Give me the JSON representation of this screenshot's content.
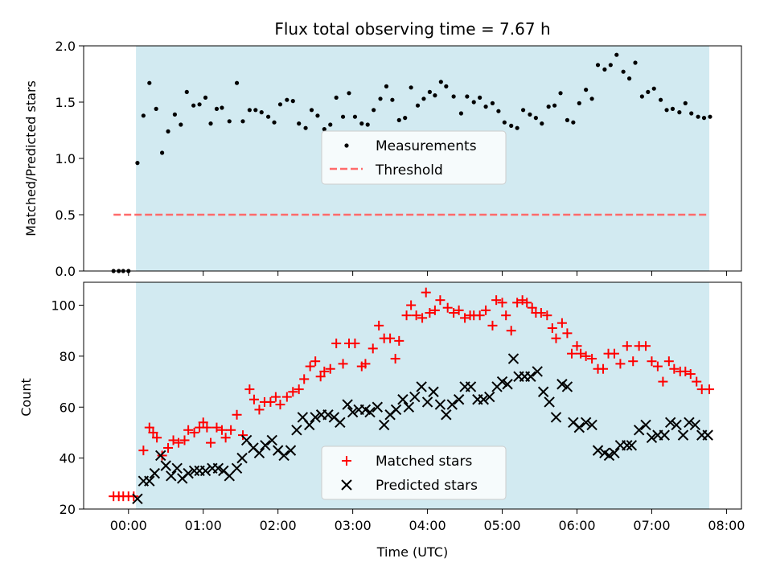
{
  "chart_data": [
    {
      "type": "scatter",
      "title": "Flux total observing time = 7.67 h",
      "xlabel": "",
      "ylabel": "Matched/Predicted stars",
      "xlim": [
        -0.6,
        8.2
      ],
      "ylim": [
        0.0,
        2.0
      ],
      "yticks": [
        0.0,
        0.5,
        1.0,
        1.5,
        2.0
      ],
      "ytick_labels": [
        "0.0",
        "0.5",
        "1.0",
        "1.5",
        "2.0"
      ],
      "shaded_range": [
        0.1,
        7.77
      ],
      "shaded_color": "#add8e6",
      "legend": {
        "placement": "center",
        "entries": [
          "Measurements",
          "Threshold"
        ]
      },
      "series": [
        {
          "name": "Measurements",
          "kind": "scatter",
          "color": "#000000",
          "x": [
            -0.2,
            -0.13,
            -0.07,
            0.0,
            0.12,
            0.2,
            0.28,
            0.37,
            0.45,
            0.53,
            0.62,
            0.7,
            0.78,
            0.87,
            0.95,
            1.03,
            1.1,
            1.18,
            1.25,
            1.35,
            1.45,
            1.53,
            1.62,
            1.7,
            1.78,
            1.87,
            1.95,
            2.03,
            2.12,
            2.2,
            2.28,
            2.37,
            2.45,
            2.53,
            2.62,
            2.7,
            2.78,
            2.87,
            2.95,
            3.03,
            3.12,
            3.2,
            3.28,
            3.37,
            3.45,
            3.53,
            3.62,
            3.7,
            3.78,
            3.87,
            3.95,
            4.03,
            4.1,
            4.18,
            4.25,
            4.35,
            4.45,
            4.53,
            4.62,
            4.7,
            4.78,
            4.87,
            4.95,
            5.03,
            5.12,
            5.2,
            5.28,
            5.37,
            5.45,
            5.53,
            5.62,
            5.7,
            5.78,
            5.87,
            5.95,
            6.03,
            6.12,
            6.2,
            6.28,
            6.37,
            6.45,
            6.53,
            6.62,
            6.7,
            6.78,
            6.87,
            6.95,
            7.03,
            7.12,
            7.2,
            7.28,
            7.37,
            7.45,
            7.53,
            7.62,
            7.7,
            7.78
          ],
          "y": [
            0.0,
            0.0,
            0.0,
            0.0,
            0.96,
            1.38,
            1.67,
            1.44,
            1.05,
            1.24,
            1.39,
            1.3,
            1.59,
            1.47,
            1.48,
            1.54,
            1.31,
            1.44,
            1.45,
            1.33,
            1.67,
            1.33,
            1.43,
            1.43,
            1.41,
            1.37,
            1.32,
            1.48,
            1.52,
            1.51,
            1.31,
            1.27,
            1.43,
            1.38,
            1.26,
            1.3,
            1.54,
            1.37,
            1.58,
            1.37,
            1.31,
            1.3,
            1.43,
            1.53,
            1.64,
            1.52,
            1.34,
            1.36,
            1.63,
            1.47,
            1.53,
            1.59,
            1.56,
            1.68,
            1.64,
            1.55,
            1.4,
            1.55,
            1.5,
            1.54,
            1.46,
            1.49,
            1.42,
            1.32,
            1.29,
            1.27,
            1.43,
            1.39,
            1.36,
            1.31,
            1.46,
            1.47,
            1.58,
            1.34,
            1.32,
            1.49,
            1.61,
            1.53,
            1.83,
            1.79,
            1.83,
            1.92,
            1.77,
            1.71,
            1.85,
            1.55,
            1.59,
            1.62,
            1.52,
            1.43,
            1.44,
            1.41,
            1.49,
            1.4,
            1.37,
            1.36,
            1.37
          ]
        },
        {
          "name": "Threshold",
          "kind": "line",
          "style": "dashed",
          "color": "#ff6b6b",
          "x": [
            -0.2,
            7.77
          ],
          "y": [
            0.5,
            0.5
          ]
        }
      ]
    },
    {
      "type": "scatter",
      "title": "",
      "xlabel": "Time (UTC)",
      "ylabel": "Count",
      "xlim": [
        -0.6,
        8.2
      ],
      "ylim": [
        20,
        109
      ],
      "xticks": [
        0,
        1,
        2,
        3,
        4,
        5,
        6,
        7,
        8
      ],
      "xtick_labels": [
        "00:00",
        "01:00",
        "02:00",
        "03:00",
        "04:00",
        "05:00",
        "06:00",
        "07:00",
        "08:00"
      ],
      "yticks": [
        20,
        40,
        60,
        80,
        100
      ],
      "ytick_labels": [
        "20",
        "40",
        "60",
        "80",
        "100"
      ],
      "shaded_range": [
        0.1,
        7.77
      ],
      "shaded_color": "#add8e6",
      "legend": {
        "placement": "lower center",
        "entries": [
          "Matched stars",
          "Predicted stars"
        ]
      },
      "series": [
        {
          "name": "Matched stars",
          "marker": "+",
          "color": "#ff0000",
          "x": [
            -0.2,
            -0.13,
            -0.07,
            0.0,
            0.07,
            0.2,
            0.28,
            0.33,
            0.38,
            0.45,
            0.53,
            0.6,
            0.67,
            0.75,
            0.8,
            0.88,
            0.95,
            1.0,
            1.05,
            1.1,
            1.18,
            1.25,
            1.3,
            1.37,
            1.45,
            1.53,
            1.62,
            1.68,
            1.75,
            1.82,
            1.9,
            1.97,
            2.03,
            2.12,
            2.2,
            2.28,
            2.35,
            2.43,
            2.5,
            2.57,
            2.62,
            2.7,
            2.78,
            2.87,
            2.95,
            3.03,
            3.12,
            3.17,
            3.27,
            3.35,
            3.42,
            3.5,
            3.57,
            3.62,
            3.72,
            3.78,
            3.85,
            3.93,
            3.98,
            4.03,
            4.1,
            4.17,
            4.27,
            4.35,
            4.42,
            4.5,
            4.57,
            4.62,
            4.7,
            4.78,
            4.87,
            4.92,
            5.0,
            5.05,
            5.12,
            5.2,
            5.27,
            5.33,
            5.4,
            5.45,
            5.52,
            5.6,
            5.67,
            5.72,
            5.8,
            5.87,
            5.93,
            6.0,
            6.05,
            6.12,
            6.2,
            6.28,
            6.35,
            6.42,
            6.5,
            6.58,
            6.67,
            6.75,
            6.83,
            6.92,
            7.0,
            7.08,
            7.15,
            7.23,
            7.3,
            7.38,
            7.45,
            7.52,
            7.6,
            7.67,
            7.77
          ],
          "y": [
            25,
            25,
            25,
            25,
            25,
            43,
            52,
            50,
            48,
            41,
            44,
            47,
            46,
            47,
            51,
            50,
            52,
            54,
            52,
            46,
            52,
            51,
            48,
            51,
            57,
            49,
            67,
            63,
            59,
            62,
            62,
            64,
            61,
            64,
            66,
            67,
            71,
            76,
            78,
            72,
            74,
            75,
            85,
            77,
            85,
            85,
            76,
            77,
            83,
            92,
            87,
            87,
            79,
            86,
            96,
            100,
            96,
            95,
            105,
            97,
            98,
            102,
            99,
            97,
            98,
            95,
            96,
            96,
            96,
            98,
            92,
            102,
            101,
            96,
            90,
            101,
            102,
            101,
            99,
            97,
            97,
            96,
            91,
            87,
            93,
            89,
            81,
            84,
            81,
            80,
            79,
            75,
            75,
            81,
            81,
            77,
            84,
            78,
            84,
            84,
            78,
            76,
            70,
            78,
            75,
            74,
            74,
            73,
            70,
            67,
            67
          ]
        },
        {
          "name": "Predicted stars",
          "marker": "x",
          "color": "#000000",
          "x": [
            0.12,
            0.2,
            0.28,
            0.35,
            0.43,
            0.5,
            0.57,
            0.65,
            0.72,
            0.8,
            0.88,
            0.95,
            1.03,
            1.12,
            1.2,
            1.27,
            1.35,
            1.45,
            1.52,
            1.58,
            1.67,
            1.75,
            1.83,
            1.92,
            2.0,
            2.08,
            2.17,
            2.25,
            2.33,
            2.42,
            2.5,
            2.58,
            2.67,
            2.75,
            2.83,
            2.93,
            3.0,
            3.08,
            3.17,
            3.23,
            3.33,
            3.42,
            3.5,
            3.58,
            3.67,
            3.75,
            3.83,
            3.92,
            4.0,
            4.08,
            4.17,
            4.25,
            4.33,
            4.42,
            4.5,
            4.58,
            4.67,
            4.75,
            4.83,
            4.93,
            5.0,
            5.07,
            5.15,
            5.22,
            5.3,
            5.38,
            5.47,
            5.55,
            5.63,
            5.72,
            5.8,
            5.87,
            5.95,
            6.03,
            6.12,
            6.2,
            6.28,
            6.37,
            6.43,
            6.5,
            6.58,
            6.67,
            6.73,
            6.83,
            6.92,
            7.0,
            7.08,
            7.17,
            7.25,
            7.33,
            7.42,
            7.5,
            7.58,
            7.67,
            7.75
          ],
          "y": [
            24,
            31,
            31,
            34,
            41,
            37,
            33,
            36,
            32,
            34,
            35,
            35,
            35,
            36,
            36,
            35,
            33,
            36,
            40,
            47,
            44,
            42,
            45,
            47,
            43,
            41,
            43,
            51,
            56,
            53,
            56,
            57,
            57,
            56,
            54,
            61,
            58,
            59,
            59,
            58,
            60,
            53,
            57,
            59,
            63,
            60,
            64,
            68,
            62,
            66,
            61,
            57,
            61,
            63,
            68,
            68,
            63,
            63,
            64,
            68,
            70,
            69,
            79,
            72,
            72,
            72,
            74,
            66,
            62,
            56,
            69,
            68,
            54,
            52,
            54,
            53,
            43,
            42,
            41,
            42,
            45,
            45,
            45,
            51,
            53,
            48,
            49,
            49,
            54,
            53,
            49,
            54,
            53,
            49,
            49
          ]
        }
      ]
    }
  ]
}
